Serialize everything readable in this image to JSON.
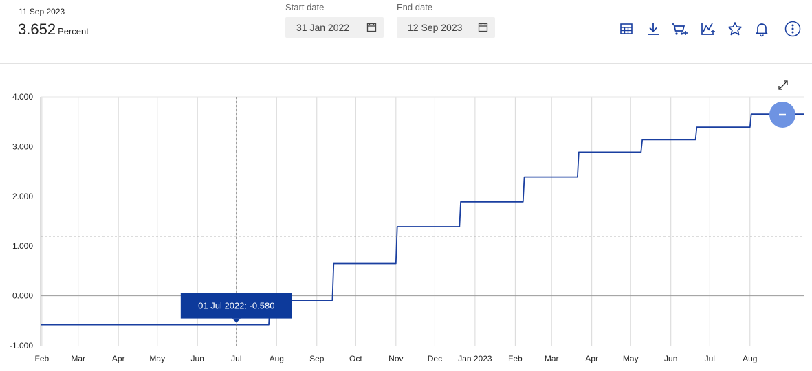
{
  "header": {
    "date": "11 Sep 2023",
    "value": "3.652",
    "unit": "Percent",
    "start_label": "Start date",
    "start_value": "31 Jan 2022",
    "end_label": "End date",
    "end_value": "12 Sep 2023"
  },
  "toolbar": {
    "icons": [
      "table-icon",
      "download-icon",
      "cart-add-icon",
      "chart-add-icon",
      "star-icon",
      "bell-icon",
      "more-icon"
    ]
  },
  "colors": {
    "line": "#1a3fa0",
    "tooltip_bg": "#0d3a9b",
    "accent": "#4f7ad6",
    "grid": "#d8d8d8"
  },
  "chart_data": {
    "type": "line",
    "xlim": [
      "2022-01-31",
      "2023-09-12"
    ],
    "ylim": [
      -1,
      4
    ],
    "yticks": [
      "4.000",
      "3.000",
      "2.000",
      "1.000",
      "0.000",
      "-1.000"
    ],
    "ytick_values": [
      4,
      3,
      2,
      1,
      0,
      -1
    ],
    "xticks": [
      {
        "date": "2022-02-01",
        "label": "Feb"
      },
      {
        "date": "2022-03-01",
        "label": "Mar"
      },
      {
        "date": "2022-04-01",
        "label": "Apr"
      },
      {
        "date": "2022-05-01",
        "label": "May"
      },
      {
        "date": "2022-06-01",
        "label": "Jun"
      },
      {
        "date": "2022-07-01",
        "label": "Jul"
      },
      {
        "date": "2022-08-01",
        "label": "Aug"
      },
      {
        "date": "2022-09-01",
        "label": "Sep"
      },
      {
        "date": "2022-10-01",
        "label": "Oct"
      },
      {
        "date": "2022-11-01",
        "label": "Nov"
      },
      {
        "date": "2022-12-01",
        "label": "Dec"
      },
      {
        "date": "2023-01-01",
        "label": "Jan 2023"
      },
      {
        "date": "2023-02-01",
        "label": "Feb"
      },
      {
        "date": "2023-03-01",
        "label": "Mar"
      },
      {
        "date": "2023-04-01",
        "label": "Apr"
      },
      {
        "date": "2023-05-01",
        "label": "May"
      },
      {
        "date": "2023-06-01",
        "label": "Jun"
      },
      {
        "date": "2023-07-01",
        "label": "Jul"
      },
      {
        "date": "2023-08-01",
        "label": "Aug"
      }
    ],
    "series": [
      {
        "points": [
          [
            "2022-01-31",
            -0.58
          ],
          [
            "2022-07-26",
            -0.58
          ],
          [
            "2022-07-27",
            -0.09
          ],
          [
            "2022-09-13",
            -0.09
          ],
          [
            "2022-09-14",
            0.65
          ],
          [
            "2022-11-01",
            0.65
          ],
          [
            "2022-11-02",
            1.39
          ],
          [
            "2022-12-20",
            1.39
          ],
          [
            "2022-12-21",
            1.89
          ],
          [
            "2023-02-07",
            1.89
          ],
          [
            "2023-02-08",
            2.39
          ],
          [
            "2023-03-21",
            2.39
          ],
          [
            "2023-03-22",
            2.89
          ],
          [
            "2023-05-09",
            2.89
          ],
          [
            "2023-05-10",
            3.14
          ],
          [
            "2023-06-20",
            3.14
          ],
          [
            "2023-06-21",
            3.39
          ],
          [
            "2023-08-01",
            3.39
          ],
          [
            "2023-08-02",
            3.652
          ],
          [
            "2023-09-12",
            3.652
          ]
        ]
      }
    ],
    "crosshair": {
      "date": "2022-07-01",
      "value": 1.2
    },
    "tooltip": "01 Jul 2022: -0.580",
    "tooltip_point": {
      "date": "2022-07-01",
      "value": -0.58
    },
    "grid": true
  }
}
